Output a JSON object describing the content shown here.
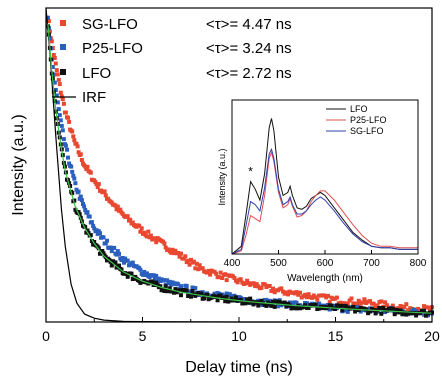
{
  "chart_data": [
    {
      "type": "scatter",
      "title": "",
      "xlabel": "Delay time (ns)",
      "ylabel": "Intensity (a.u.)",
      "xlim": [
        0,
        20
      ],
      "ylim": [
        0,
        1
      ],
      "x_ticks": [
        0,
        5,
        10,
        15,
        20
      ],
      "y_ticks": [],
      "grid": false,
      "legend_position": "top-left",
      "series": [
        {
          "name": "SG-LFO",
          "marker": "square",
          "color": "#e84830",
          "lifetime_label": "<τ>= 4.47 ns",
          "x": [
            0.1,
            0.3,
            0.5,
            0.75,
            1.0,
            1.5,
            2.0,
            2.5,
            3.0,
            4.0,
            5.0,
            6.0,
            7.0,
            8.0,
            9.0,
            10.0,
            11.0,
            12.0,
            13.0,
            14.0,
            15.0,
            16.0,
            17.0,
            18.0,
            19.0,
            20.0
          ],
          "y": [
            0.97,
            0.89,
            0.82,
            0.74,
            0.67,
            0.57,
            0.5,
            0.45,
            0.41,
            0.34,
            0.29,
            0.25,
            0.21,
            0.17,
            0.15,
            0.13,
            0.115,
            0.1,
            0.09,
            0.08,
            0.07,
            0.065,
            0.06,
            0.05,
            0.045,
            0.04
          ]
        },
        {
          "name": "P25-LFO",
          "marker": "square",
          "color": "#2a5fbf",
          "lifetime_label": "<τ>= 3.24 ns",
          "x": [
            0.1,
            0.3,
            0.5,
            0.75,
            1.0,
            1.5,
            2.0,
            2.5,
            3.0,
            4.0,
            5.0,
            6.0,
            7.0,
            8.0,
            9.0,
            10.0,
            11.0,
            12.0,
            13.0,
            14.0,
            15.0,
            16.0,
            17.0,
            18.0,
            19.0,
            20.0
          ],
          "y": [
            0.96,
            0.84,
            0.74,
            0.64,
            0.56,
            0.44,
            0.36,
            0.3,
            0.26,
            0.2,
            0.16,
            0.13,
            0.11,
            0.095,
            0.085,
            0.075,
            0.065,
            0.06,
            0.055,
            0.05,
            0.045,
            0.04,
            0.038,
            0.035,
            0.032,
            0.03
          ]
        },
        {
          "name": "LFO",
          "marker": "square",
          "color": "#111111",
          "lifetime_label": "<τ>= 2.72 ns",
          "x": [
            0.1,
            0.3,
            0.5,
            0.75,
            1.0,
            1.5,
            2.0,
            2.5,
            3.0,
            4.0,
            5.0,
            6.0,
            7.0,
            8.0,
            9.0,
            10.0,
            11.0,
            12.0,
            13.0,
            14.0,
            15.0,
            16.0,
            17.0,
            18.0,
            19.0,
            20.0
          ],
          "y": [
            0.95,
            0.8,
            0.68,
            0.57,
            0.48,
            0.37,
            0.3,
            0.25,
            0.21,
            0.16,
            0.13,
            0.11,
            0.095,
            0.085,
            0.075,
            0.068,
            0.062,
            0.057,
            0.052,
            0.048,
            0.044,
            0.04,
            0.037,
            0.034,
            0.031,
            0.028
          ]
        },
        {
          "name": "IRF",
          "marker": "line",
          "color": "#000000",
          "x": [
            0,
            0.2,
            0.5,
            0.8,
            1.0,
            1.3,
            1.6,
            2.0,
            2.5,
            3.0,
            4.0,
            6.0,
            10.0,
            20.0
          ],
          "y": [
            1.0,
            0.86,
            0.6,
            0.36,
            0.24,
            0.12,
            0.06,
            0.025,
            0.012,
            0.006,
            0.002,
            0.001,
            0.0,
            0.0
          ]
        }
      ]
    },
    {
      "type": "line",
      "title": "",
      "xlabel": "Wavelength (nm)",
      "ylabel": "Intensity (a.u.)",
      "xlim": [
        400,
        800
      ],
      "ylim": [
        0,
        1
      ],
      "x_ticks": [
        400,
        500,
        600,
        700,
        800
      ],
      "grid": false,
      "legend_position": "top-right",
      "annotation": "*",
      "annotation_x": 440,
      "series": [
        {
          "name": "LFO",
          "color": "#111111",
          "x": [
            400,
            420,
            430,
            440,
            450,
            460,
            470,
            480,
            485,
            490,
            500,
            510,
            520,
            525,
            530,
            540,
            550,
            560,
            570,
            580,
            590,
            600,
            620,
            640,
            660,
            680,
            700,
            720,
            740,
            760,
            780,
            800
          ],
          "y": [
            0.0,
            0.05,
            0.25,
            0.47,
            0.42,
            0.35,
            0.52,
            0.82,
            0.88,
            0.8,
            0.5,
            0.38,
            0.4,
            0.44,
            0.38,
            0.3,
            0.29,
            0.31,
            0.36,
            0.38,
            0.4,
            0.38,
            0.3,
            0.22,
            0.14,
            0.09,
            0.05,
            0.04,
            0.04,
            0.03,
            0.03,
            0.03
          ]
        },
        {
          "name": "P25-LFO",
          "color": "#e05050",
          "x": [
            400,
            420,
            430,
            440,
            450,
            460,
            470,
            480,
            485,
            490,
            500,
            510,
            520,
            525,
            530,
            540,
            550,
            560,
            570,
            580,
            590,
            600,
            620,
            640,
            660,
            680,
            700,
            720,
            740,
            760,
            780,
            800
          ],
          "y": [
            0.0,
            0.02,
            0.12,
            0.25,
            0.23,
            0.21,
            0.38,
            0.62,
            0.66,
            0.6,
            0.4,
            0.3,
            0.32,
            0.36,
            0.31,
            0.24,
            0.25,
            0.28,
            0.34,
            0.38,
            0.41,
            0.41,
            0.35,
            0.27,
            0.19,
            0.12,
            0.07,
            0.05,
            0.05,
            0.04,
            0.04,
            0.04
          ]
        },
        {
          "name": "SG-LFO",
          "color": "#3040b0",
          "x": [
            400,
            420,
            430,
            440,
            450,
            460,
            470,
            480,
            485,
            490,
            500,
            510,
            520,
            525,
            530,
            540,
            550,
            560,
            570,
            580,
            590,
            600,
            620,
            640,
            660,
            680,
            700,
            720,
            740,
            760,
            780,
            800
          ],
          "y": [
            0.0,
            0.03,
            0.18,
            0.34,
            0.32,
            0.28,
            0.43,
            0.65,
            0.68,
            0.62,
            0.42,
            0.32,
            0.34,
            0.37,
            0.32,
            0.26,
            0.26,
            0.28,
            0.32,
            0.35,
            0.37,
            0.35,
            0.28,
            0.2,
            0.13,
            0.08,
            0.05,
            0.04,
            0.04,
            0.03,
            0.03,
            0.03
          ]
        }
      ]
    }
  ]
}
